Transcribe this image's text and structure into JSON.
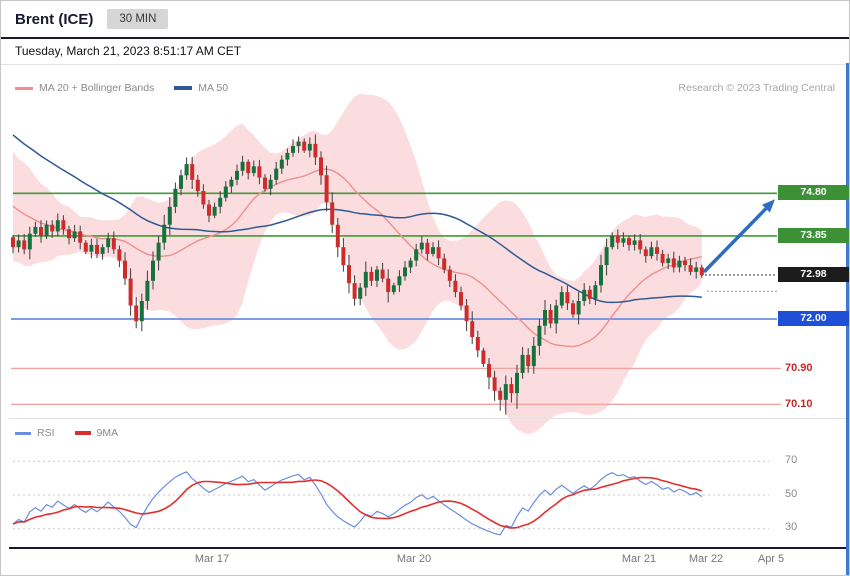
{
  "header": {
    "title": "Brent (ICE)",
    "timeframe": "30 MIN"
  },
  "datetime": "Tuesday, March 21, 2023 8:51:17 AM CET",
  "attribution": "Research © 2023 Trading Central",
  "legend": {
    "ma20": "MA 20 + Bollinger Bands",
    "ma50": "MA 50"
  },
  "rsi_legend": {
    "rsi": "RSI",
    "ma9": "9MA"
  },
  "colors": {
    "candle_up": "#16713c",
    "candle_down": "#cf2b2b",
    "wick": "#3c3c3c",
    "band_fill": "#f7bcc1",
    "ma20": "#ee8f8f",
    "ma50": "#2d5a94",
    "resistance_line": "#3f9c35",
    "support_blue_line": "#6b8ede",
    "support_pink_line": "#f1a3a3",
    "last_dotted": "#333333",
    "arrow": "#2e6cc0",
    "rsi_line": "#6b8ede",
    "rsi_ma_line": "#e03030",
    "grid_dotted": "#c9c9c9"
  },
  "chart_data": {
    "type": "candlestick",
    "title": "Brent (ICE) 30 MIN",
    "last_price": 72.98,
    "levels": [
      {
        "value": 74.8,
        "label": "74.80",
        "kind": "resistance",
        "style": "green"
      },
      {
        "value": 73.85,
        "label": "73.85",
        "kind": "resistance",
        "style": "green"
      },
      {
        "value": 72.98,
        "label": "72.98",
        "kind": "last",
        "style": "black"
      },
      {
        "value": 72.0,
        "label": "72.00",
        "kind": "support",
        "style": "blue"
      },
      {
        "value": 70.9,
        "label": "70.90",
        "kind": "support",
        "style": "red-text"
      },
      {
        "value": 70.1,
        "label": "70.10",
        "kind": "support",
        "style": "red-text"
      }
    ],
    "direction_arrow": {
      "from_price": 72.98,
      "to_price": 74.8,
      "direction": "up"
    },
    "indicators": {
      "ma_fast": 20,
      "ma_slow": 50,
      "bollinger_k": 2,
      "rsi_period": 14,
      "rsi_ma": 9
    },
    "rsi_scale": [
      70,
      50,
      30
    ],
    "x_ticks": [
      "Mar 17",
      "Mar 20",
      "Mar 21",
      "Mar 22",
      "Apr 5"
    ],
    "closes": [
      73.6,
      73.75,
      73.55,
      73.9,
      74.05,
      73.85,
      74.1,
      73.95,
      74.2,
      74.0,
      73.8,
      73.95,
      73.7,
      73.5,
      73.65,
      73.45,
      73.6,
      73.8,
      73.55,
      73.3,
      72.9,
      72.3,
      71.95,
      72.4,
      72.85,
      73.3,
      73.7,
      74.1,
      74.5,
      74.9,
      75.2,
      75.45,
      75.1,
      74.85,
      74.55,
      74.3,
      74.5,
      74.7,
      74.95,
      75.1,
      75.3,
      75.5,
      75.25,
      75.4,
      75.15,
      74.9,
      75.1,
      75.35,
      75.55,
      75.7,
      75.85,
      75.95,
      75.75,
      75.9,
      75.6,
      75.2,
      74.6,
      74.1,
      73.6,
      73.2,
      72.8,
      72.45,
      72.7,
      73.05,
      72.85,
      73.1,
      72.9,
      72.6,
      72.75,
      72.95,
      73.15,
      73.3,
      73.55,
      73.7,
      73.45,
      73.6,
      73.35,
      73.1,
      72.85,
      72.6,
      72.3,
      71.95,
      71.6,
      71.3,
      71.0,
      70.7,
      70.4,
      70.2,
      70.55,
      70.35,
      70.8,
      71.2,
      70.95,
      71.4,
      71.85,
      72.2,
      71.9,
      72.3,
      72.6,
      72.35,
      72.1,
      72.4,
      72.65,
      72.45,
      72.75,
      73.2,
      73.6,
      73.85,
      73.7,
      73.8,
      73.65,
      73.75,
      73.55,
      73.4,
      73.6,
      73.45,
      73.25,
      73.35,
      73.15,
      73.3,
      73.2,
      73.05,
      73.15,
      72.98
    ]
  }
}
